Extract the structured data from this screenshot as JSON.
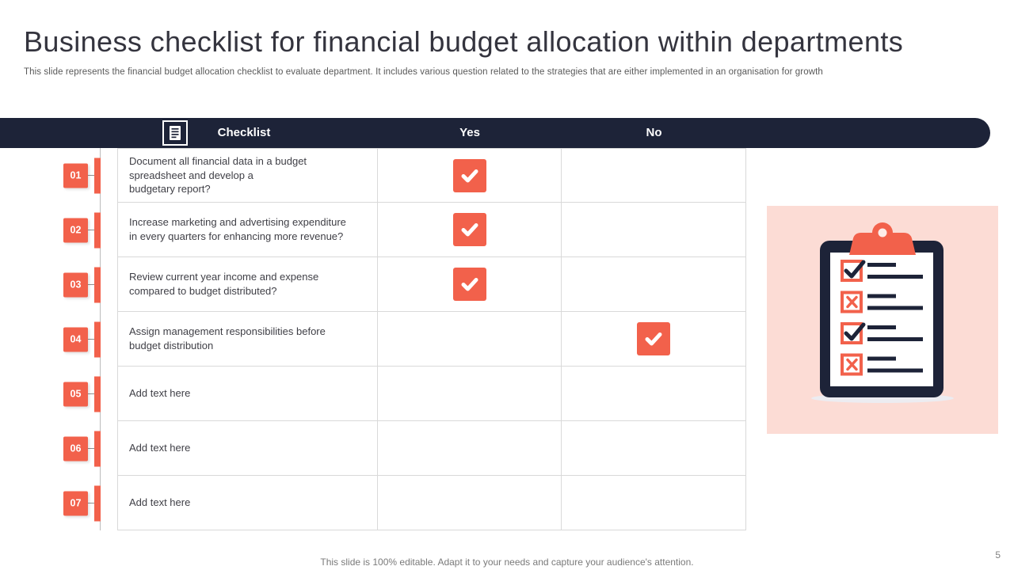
{
  "slide": {
    "title": "Business checklist for financial budget allocation within departments",
    "subtitle": "This slide represents the financial budget allocation checklist to evaluate department. It includes various question related to the strategies that are either implemented in an organisation for growth",
    "footer_note": "This slide is 100% editable. Adapt it to your needs and capture your audience's attention.",
    "page_number": "5"
  },
  "table": {
    "header_icon": "checklist-clipboard-icon",
    "headers": {
      "checklist": "Checklist",
      "yes": "Yes",
      "no": "No"
    },
    "rows": [
      {
        "num": "01",
        "text": "Document all financial data in a budget\nspreadsheet and develop a\nbudgetary report?",
        "yes": true,
        "no": false
      },
      {
        "num": "02",
        "text": "Increase marketing and advertising expenditure\nin every quarters for enhancing more revenue?",
        "yes": true,
        "no": false
      },
      {
        "num": "03",
        "text": "Review current year income and expense\ncompared to budget distributed?",
        "yes": true,
        "no": false
      },
      {
        "num": "04",
        "text": "Assign management responsibilities before\nbudget distribution",
        "yes": false,
        "no": true
      },
      {
        "num": "05",
        "text": "Add text here",
        "yes": false,
        "no": false
      },
      {
        "num": "06",
        "text": "Add text here",
        "yes": false,
        "no": false
      },
      {
        "num": "07",
        "text": "Add text here",
        "yes": false,
        "no": false
      }
    ]
  },
  "illustration": {
    "name": "clipboard-checklist-illustration",
    "items": [
      "check",
      "cross",
      "check",
      "cross"
    ]
  },
  "colors": {
    "navy": "#1d2338",
    "accent_orange": "#f2614b",
    "panel_pink": "#fcdcd5",
    "table_border": "#d9d9d9",
    "body_text": "#3f3f46"
  }
}
